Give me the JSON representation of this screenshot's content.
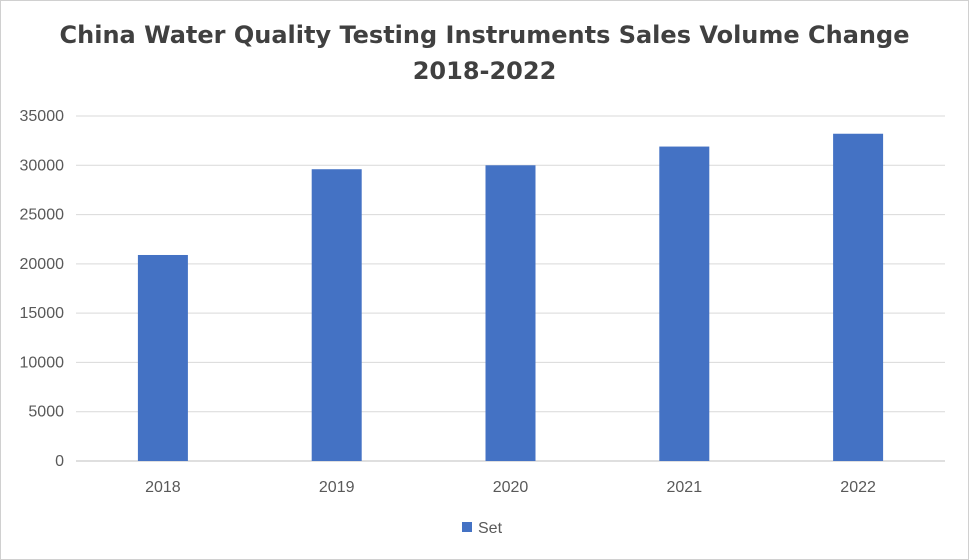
{
  "chart_data": {
    "type": "bar",
    "title_line1": "China Water Quality Testing Instruments Sales Volume Change",
    "title_line2": "2018-2022",
    "categories": [
      "2018",
      "2019",
      "2020",
      "2021",
      "2022"
    ],
    "series": [
      {
        "name": "Set",
        "color": "#4472C4",
        "values": [
          20900,
          29600,
          30000,
          31900,
          33200
        ]
      }
    ],
    "ylim": [
      0,
      35000
    ],
    "ytick_labels": [
      "0",
      "5000",
      "10000",
      "15000",
      "20000",
      "25000",
      "30000",
      "35000"
    ],
    "grid": true,
    "legend_position": "bottom"
  }
}
